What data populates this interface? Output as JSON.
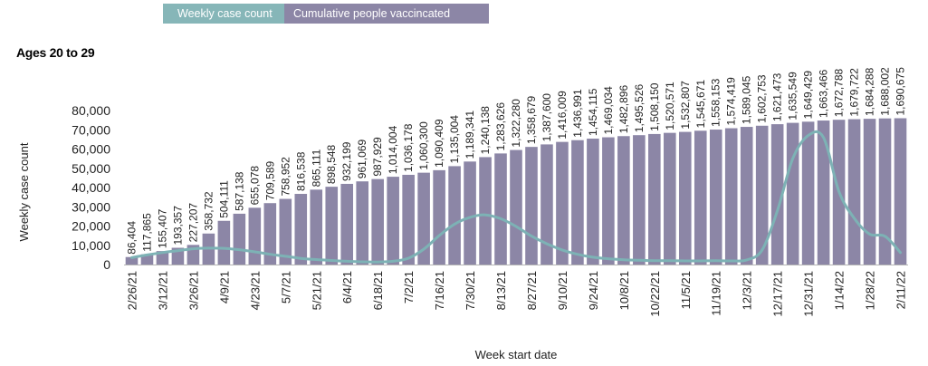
{
  "colors": {
    "bar": "#8c86a6",
    "line": "#7db2b5",
    "legend_case": "#86b6b8",
    "legend_cum": "#8c86a6"
  },
  "legend": {
    "weekly": "Weekly case count",
    "cumulative": "Cumulative people vaccincated"
  },
  "subtitle": "Ages 20 to 29",
  "chart_data": {
    "type": "bar",
    "ylabel": "Weekly case count",
    "xlabel": "Week start date",
    "ylim": [
      0,
      80000
    ],
    "yticks": [
      "0",
      "10,000",
      "20,000",
      "30,000",
      "40,000",
      "50,000",
      "60,000",
      "70,000",
      "80,000"
    ],
    "x_tick_labels": [
      "2/26/21",
      "3/12/21",
      "3/26/21",
      "4/9/21",
      "4/23/21",
      "5/7/21",
      "5/21/21",
      "6/4/21",
      "6/18/21",
      "7/2/21",
      "7/16/21",
      "7/30/21",
      "8/13/21",
      "8/27/21",
      "9/10/21",
      "9/24/21",
      "10/8/21",
      "10/22/21",
      "11/5/21",
      "11/19/21",
      "12/3/21",
      "12/17/21",
      "12/31/21",
      "1/14/22",
      "1/28/22",
      "2/11/22"
    ],
    "bar_labels": [
      "86,404",
      "117,865",
      "155,407",
      "193,357",
      "227,207",
      "358,732",
      "504,111",
      "587,138",
      "655,078",
      "709,589",
      "758,952",
      "816,538",
      "865,111",
      "898,548",
      "932,199",
      "961,069",
      "987,929",
      "1,014,004",
      "1,036,178",
      "1,060,300",
      "1,090,409",
      "1,135,004",
      "1,189,341",
      "1,240,138",
      "1,283,626",
      "1,322,280",
      "1,358,679",
      "1,387,600",
      "1,416,009",
      "1,436,991",
      "1,454,115",
      "1,469,034",
      "1,482,896",
      "1,495,526",
      "1,508,150",
      "1,520,571",
      "1,532,807",
      "1,545,671",
      "1,558,153",
      "1,574,419",
      "1,589,045",
      "1,602,753",
      "1,621,473",
      "1,635,549",
      "1,649,429",
      "1,663,466",
      "1,672,788",
      "1,679,722",
      "1,684,288",
      "1,688,002",
      "1,690,675"
    ],
    "series": [
      {
        "name": "Cumulative people vaccincated",
        "type": "bar",
        "values": [
          3900,
          5300,
          7000,
          8700,
          10200,
          16100,
          22700,
          26400,
          29500,
          31900,
          34100,
          36700,
          38900,
          40400,
          41900,
          43200,
          44400,
          45600,
          46600,
          47700,
          49000,
          51100,
          53500,
          55800,
          57700,
          59500,
          61100,
          62400,
          63700,
          64600,
          65400,
          66100,
          66700,
          67200,
          67800,
          68400,
          68900,
          69500,
          70100,
          70800,
          71500,
          72100,
          72900,
          73600,
          74200,
          74800,
          75200,
          75500,
          75700,
          75900,
          76000
        ]
      },
      {
        "name": "Weekly case count",
        "type": "line",
        "values": [
          3600,
          5000,
          6200,
          7200,
          8200,
          8500,
          8400,
          7700,
          6600,
          5300,
          4300,
          3200,
          2600,
          2100,
          1700,
          1400,
          1300,
          1700,
          3300,
          8000,
          15000,
          21000,
          24500,
          25800,
          23800,
          19800,
          14800,
          10800,
          7600,
          5300,
          3800,
          3000,
          2500,
          2200,
          2000,
          2000,
          1900,
          1900,
          2000,
          1900,
          2400,
          7500,
          28000,
          55000,
          67000,
          66000,
          38000,
          24000,
          15800,
          14700,
          6200
        ]
      }
    ]
  }
}
